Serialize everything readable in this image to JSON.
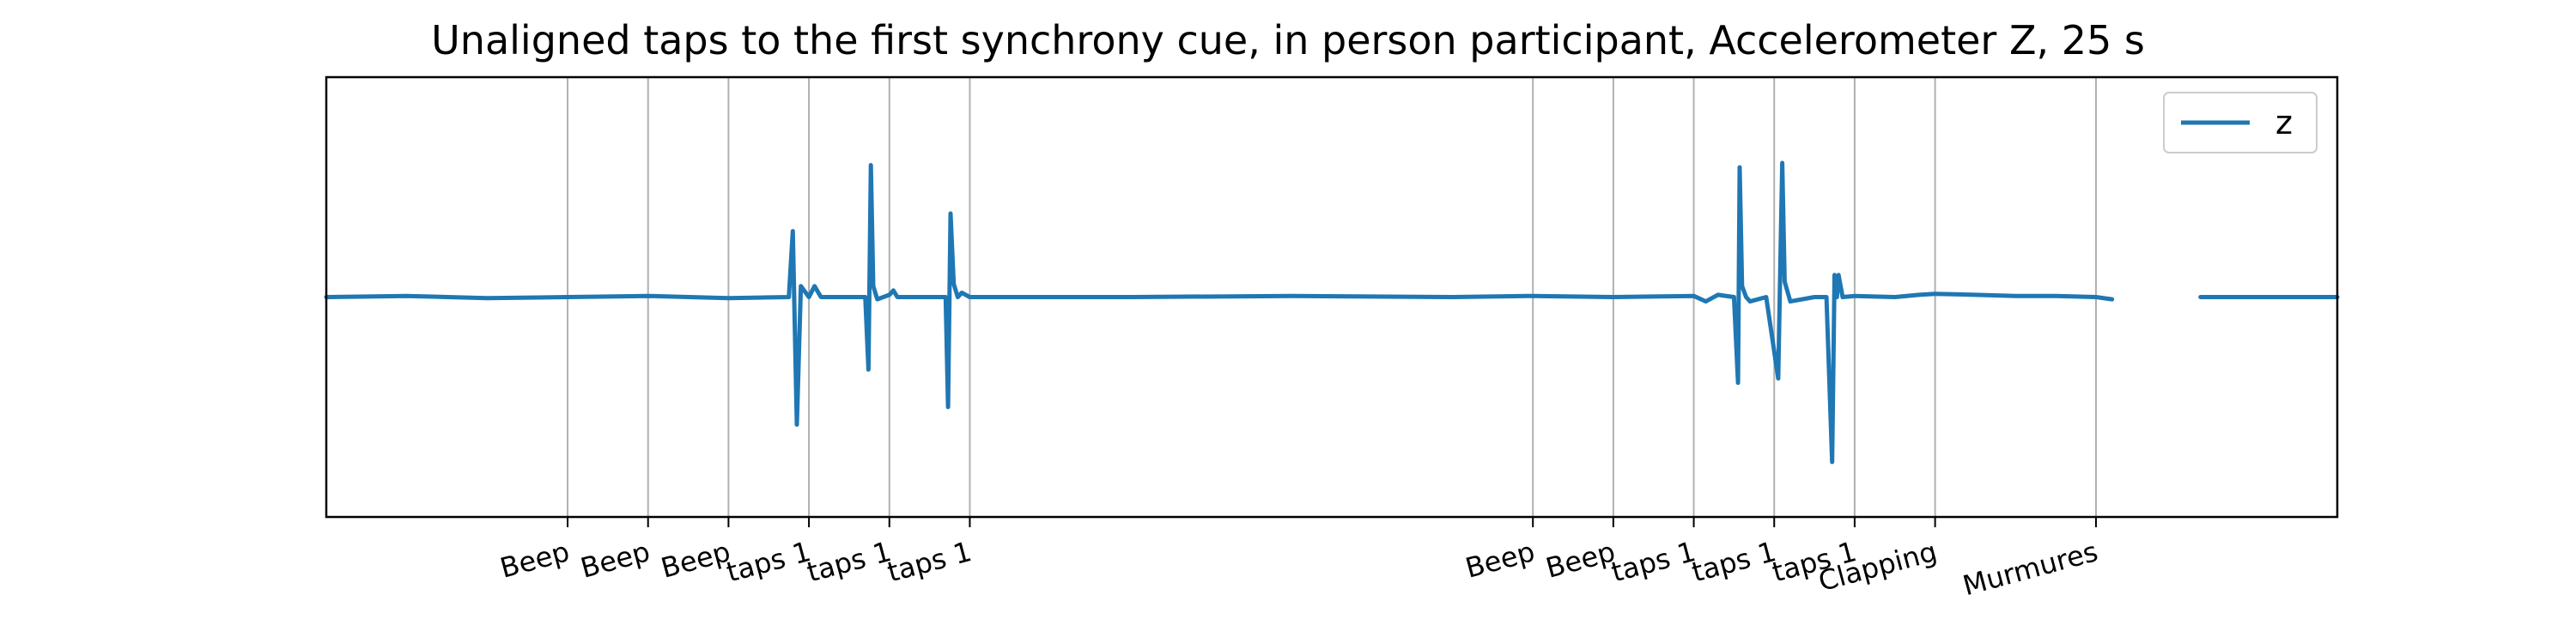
{
  "chart_data": {
    "type": "line",
    "title": "Unaligned taps to the first synchrony cue, in person participant, Accelerometer Z, 25 s",
    "xlabel": "",
    "ylabel": "",
    "xlim": [
      0,
      25
    ],
    "ylim": [
      -1.0,
      1.0
    ],
    "grid": "x",
    "legend_position": "upper right",
    "x_ticks": [
      {
        "x": 3.0,
        "label": "Beep"
      },
      {
        "x": 4.0,
        "label": "Beep"
      },
      {
        "x": 5.0,
        "label": "Beep"
      },
      {
        "x": 6.0,
        "label": "taps 1"
      },
      {
        "x": 7.0,
        "label": "taps 1"
      },
      {
        "x": 8.0,
        "label": "taps 1"
      },
      {
        "x": 15.0,
        "label": "Beep"
      },
      {
        "x": 16.0,
        "label": "Beep"
      },
      {
        "x": 17.0,
        "label": "taps 1"
      },
      {
        "x": 18.0,
        "label": "taps 1"
      },
      {
        "x": 19.0,
        "label": "taps 1"
      },
      {
        "x": 20.0,
        "label": "Clapping"
      },
      {
        "x": 22.0,
        "label": "Murmures"
      }
    ],
    "series": [
      {
        "name": "z",
        "color": "#1f77b4",
        "segments": [
          [
            [
              0.0,
              0.0
            ],
            [
              1.0,
              0.005
            ],
            [
              2.0,
              -0.005
            ],
            [
              3.0,
              0.0
            ],
            [
              4.0,
              0.005
            ],
            [
              5.0,
              -0.005
            ],
            [
              5.75,
              0.0
            ],
            [
              5.8,
              0.3
            ],
            [
              5.85,
              -0.58
            ],
            [
              5.9,
              0.05
            ],
            [
              6.0,
              0.0
            ],
            [
              6.07,
              0.05
            ],
            [
              6.15,
              0.0
            ],
            [
              6.7,
              0.0
            ],
            [
              6.74,
              -0.33
            ],
            [
              6.77,
              0.6
            ],
            [
              6.8,
              0.05
            ],
            [
              6.85,
              -0.01
            ],
            [
              7.0,
              0.01
            ],
            [
              7.05,
              0.03
            ],
            [
              7.1,
              0.0
            ],
            [
              7.7,
              0.0
            ],
            [
              7.73,
              -0.5
            ],
            [
              7.76,
              0.38
            ],
            [
              7.8,
              0.06
            ],
            [
              7.85,
              0.0
            ],
            [
              7.9,
              0.02
            ],
            [
              8.0,
              0.0
            ],
            [
              10.0,
              0.0
            ],
            [
              12.0,
              0.005
            ],
            [
              14.0,
              0.0
            ],
            [
              15.0,
              0.005
            ],
            [
              16.0,
              0.0
            ],
            [
              17.0,
              0.005
            ],
            [
              17.15,
              -0.02
            ],
            [
              17.3,
              0.01
            ],
            [
              17.5,
              0.0
            ],
            [
              17.55,
              -0.39
            ],
            [
              17.57,
              0.59
            ],
            [
              17.6,
              0.05
            ],
            [
              17.65,
              0.0
            ],
            [
              17.7,
              -0.02
            ],
            [
              17.9,
              0.0
            ],
            [
              18.05,
              -0.37
            ],
            [
              18.1,
              0.61
            ],
            [
              18.13,
              0.07
            ],
            [
              18.2,
              -0.02
            ],
            [
              18.5,
              0.0
            ],
            [
              18.65,
              0.0
            ],
            [
              18.72,
              -0.75
            ],
            [
              18.75,
              0.1
            ],
            [
              18.78,
              0.0
            ],
            [
              18.8,
              0.1
            ],
            [
              18.85,
              0.0
            ],
            [
              19.0,
              0.005
            ],
            [
              19.5,
              0.0
            ],
            [
              19.8,
              0.01
            ],
            [
              20.0,
              0.015
            ],
            [
              20.5,
              0.01
            ],
            [
              21.0,
              0.005
            ],
            [
              21.5,
              0.005
            ],
            [
              22.0,
              0.0
            ],
            [
              22.2,
              -0.01
            ]
          ],
          [
            [
              23.3,
              0.0
            ],
            [
              24.0,
              0.0
            ],
            [
              25.0,
              0.0
            ]
          ]
        ]
      }
    ]
  }
}
